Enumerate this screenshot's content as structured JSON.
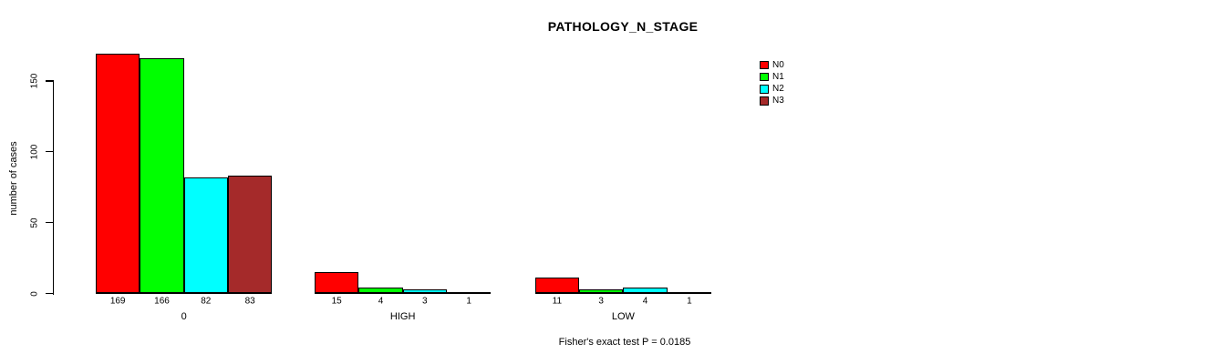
{
  "title": "PATHOLOGY_N_STAGE",
  "footnote": "Fisher's exact test P = 0.0185",
  "chart_data": {
    "type": "bar",
    "title": "PATHOLOGY_N_STAGE",
    "xlabel": "",
    "ylabel": "number of cases",
    "categories": [
      "0",
      "HIGH",
      "LOW"
    ],
    "series": [
      {
        "name": "N0",
        "color": "#ff0000",
        "values": [
          169,
          15,
          11
        ]
      },
      {
        "name": "N1",
        "color": "#00ff00",
        "values": [
          166,
          4,
          3
        ]
      },
      {
        "name": "N2",
        "color": "#00ffff",
        "values": [
          82,
          3,
          4
        ]
      },
      {
        "name": "N3",
        "color": "#a52a2a",
        "values": [
          83,
          1,
          1
        ]
      }
    ],
    "yticks": [
      0,
      50,
      100,
      150
    ],
    "ylim": [
      0,
      169
    ],
    "grid": false,
    "bar_value_labels_shown": true,
    "legend_position": "top-right",
    "annotation": "Fisher's exact test P = 0.0185"
  }
}
